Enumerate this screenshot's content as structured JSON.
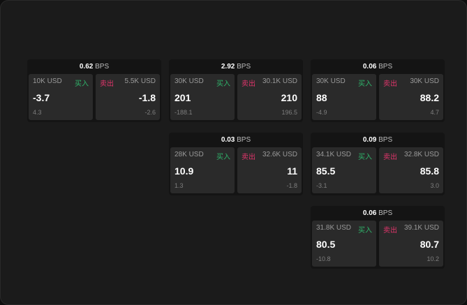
{
  "unit": "BPS",
  "buy_label": "买入",
  "sell_label": "卖出",
  "colors": {
    "buy": "#2fb36a",
    "sell": "#e0356b"
  },
  "cards": [
    {
      "spread": "0.62",
      "bid": {
        "size": "10K USD",
        "price": "-3.7",
        "change": "4.3"
      },
      "ask": {
        "size": "5.5K USD",
        "price": "-1.8",
        "change": "-2.6"
      }
    },
    {
      "spread": "2.92",
      "bid": {
        "size": "30K USD",
        "price": "201",
        "change": "-188.1"
      },
      "ask": {
        "size": "30.1K USD",
        "price": "210",
        "change": "196.5"
      }
    },
    {
      "spread": "0.06",
      "bid": {
        "size": "30K USD",
        "price": "88",
        "change": "-4.9"
      },
      "ask": {
        "size": "30K USD",
        "price": "88.2",
        "change": "4.7"
      }
    },
    {
      "spread": "0.03",
      "bid": {
        "size": "28K USD",
        "price": "10.9",
        "change": "1.3"
      },
      "ask": {
        "size": "32.6K USD",
        "price": "11",
        "change": "-1.8"
      }
    },
    {
      "spread": "0.09",
      "bid": {
        "size": "34.1K USD",
        "price": "85.5",
        "change": "-3.1"
      },
      "ask": {
        "size": "32.8K USD",
        "price": "85.8",
        "change": "3.0"
      }
    },
    {
      "spread": "0.06",
      "bid": {
        "size": "31.8K USD",
        "price": "80.5",
        "change": "-10.8"
      },
      "ask": {
        "size": "39.1K USD",
        "price": "80.7",
        "change": "10.2"
      }
    }
  ]
}
